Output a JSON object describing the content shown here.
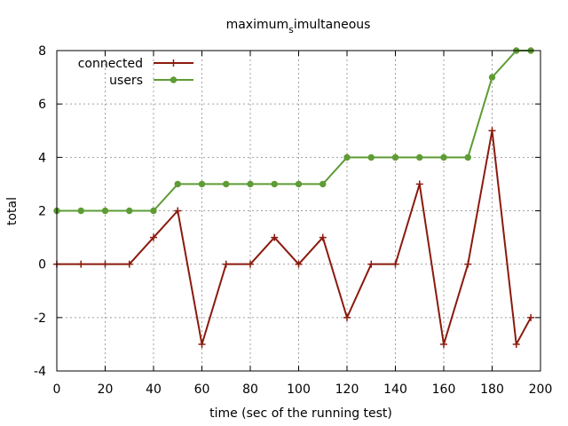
{
  "chart_data": {
    "type": "line",
    "title": "maximum_simultaneous",
    "title_main": "maximum",
    "title_sub": "s",
    "title_rest": "imultaneous",
    "xlabel": "time (sec of the running test)",
    "ylabel": "total",
    "xlim": [
      0,
      200
    ],
    "ylim": [
      -4,
      8
    ],
    "xticks": [
      0,
      20,
      40,
      60,
      80,
      100,
      120,
      140,
      160,
      180,
      200
    ],
    "yticks": [
      -4,
      -2,
      0,
      2,
      4,
      6,
      8
    ],
    "grid": true,
    "legend_position": "top-left",
    "series": [
      {
        "name": "connected",
        "color": "#8b1a0e",
        "marker": "plus",
        "x": [
          0,
          10,
          20,
          30,
          40,
          50,
          60,
          70,
          80,
          90,
          100,
          110,
          120,
          130,
          140,
          150,
          160,
          170,
          180,
          190,
          196
        ],
        "y": [
          0,
          0,
          0,
          0,
          1,
          2,
          -3,
          0,
          0,
          1,
          0,
          1,
          -2,
          0,
          0,
          3,
          -3,
          0,
          5,
          -3,
          -2
        ]
      },
      {
        "name": "users",
        "color": "#5e9c36",
        "marker": "dot",
        "x": [
          0,
          10,
          20,
          30,
          40,
          50,
          60,
          70,
          80,
          90,
          100,
          110,
          120,
          130,
          140,
          150,
          160,
          170,
          180,
          190,
          196
        ],
        "y": [
          2,
          2,
          2,
          2,
          2,
          3,
          3,
          3,
          3,
          3,
          3,
          3,
          4,
          4,
          4,
          4,
          4,
          4,
          7,
          8,
          8
        ]
      }
    ]
  }
}
